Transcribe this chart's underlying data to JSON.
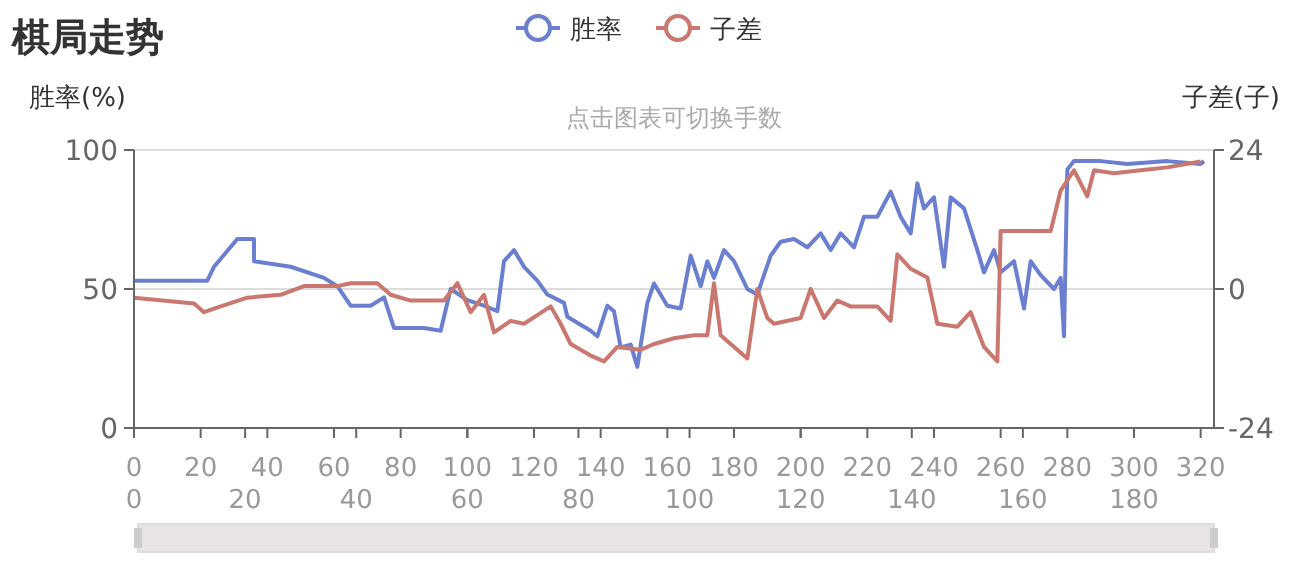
{
  "chart_data": {
    "type": "line",
    "title": "棋局走势",
    "subtitle": "点击图表可切换手数",
    "ylabel": "胜率(%)",
    "y2label": "子差(子)",
    "xlim": [
      0,
      324
    ],
    "xticks": [
      0,
      20,
      40,
      60,
      80,
      100,
      120,
      140,
      160,
      180,
      200,
      220,
      240,
      260,
      280,
      300,
      320
    ],
    "x2lim": [
      0,
      194.4
    ],
    "x2ticks": [
      0,
      20,
      40,
      60,
      80,
      100,
      120,
      140,
      160,
      180
    ],
    "ylim": [
      0,
      100
    ],
    "yticks": [
      0,
      50,
      100
    ],
    "y2lim": [
      -24,
      24
    ],
    "y2ticks": [
      -24,
      0,
      24
    ],
    "grid": "y",
    "legend": "top",
    "line_style": "solid",
    "series": [
      {
        "name": "胜率",
        "color": "#6b7fd0",
        "x": [
          0,
          18,
          22,
          24,
          31,
          36,
          36,
          47,
          57,
          61,
          65,
          71,
          75,
          78,
          87,
          92,
          95,
          100,
          105,
          109,
          111,
          114,
          117,
          121,
          124,
          129,
          130,
          137,
          139,
          142,
          144,
          146,
          149,
          151,
          154,
          156,
          160,
          164,
          167,
          170,
          172,
          174,
          177,
          180,
          184,
          187,
          191,
          194,
          198,
          202,
          206,
          209,
          212,
          216,
          219,
          223,
          227,
          230,
          233,
          235,
          237,
          240,
          243,
          245,
          249,
          253,
          255,
          258,
          260,
          264,
          267,
          269,
          272,
          276,
          278,
          279,
          280,
          282,
          290,
          298,
          310,
          320,
          321
        ],
        "values": [
          53,
          53,
          53,
          58,
          68,
          68,
          60,
          58,
          54,
          51,
          44,
          44,
          47,
          36,
          36,
          35,
          50,
          46,
          44,
          42,
          60,
          64,
          58,
          53,
          48,
          45,
          40,
          35,
          33,
          44,
          42,
          29,
          30,
          22,
          45,
          52,
          44,
          43,
          62,
          51,
          60,
          54,
          64,
          60,
          50,
          48,
          62,
          67,
          68,
          65,
          70,
          64,
          70,
          65,
          76,
          76,
          85,
          76,
          70,
          88,
          79,
          83,
          58,
          83,
          79,
          64,
          56,
          64,
          56,
          60,
          43,
          60,
          55,
          50,
          54,
          33,
          93,
          96,
          96,
          95,
          96,
          95,
          96
        ]
      },
      {
        "name": "子差",
        "color": "#c9776f",
        "axis": "y2",
        "x": [
          0,
          18,
          21,
          26,
          34,
          44,
          51,
          61,
          65,
          73,
          77,
          83,
          93,
          97,
          101,
          105,
          108,
          113,
          117,
          121,
          125,
          128,
          131,
          137,
          141,
          145,
          152,
          156,
          162,
          168,
          172,
          174,
          176,
          184,
          187,
          190,
          192,
          200,
          203,
          207,
          211,
          215,
          223,
          227,
          229,
          233,
          238,
          241,
          247,
          251,
          255,
          259,
          260,
          275,
          278,
          282,
          286,
          288,
          294,
          302,
          310,
          320
        ],
        "values": [
          -1.5,
          -2.5,
          -4,
          -3,
          -1.5,
          -1,
          0.5,
          0.5,
          1,
          1,
          -1,
          -2,
          -2,
          1,
          -4,
          -1,
          -7.5,
          -5.5,
          -6,
          -4.5,
          -3,
          -6,
          -9.5,
          -11.5,
          -12.5,
          -10,
          -10.5,
          -9.5,
          -8.5,
          -8,
          -8,
          1,
          -8,
          -12,
          0,
          -5,
          -6,
          -5,
          0,
          -5,
          -2,
          -3,
          -3,
          -5.5,
          6,
          3.5,
          2,
          -6,
          -6.5,
          -4,
          -10,
          -12.5,
          10,
          10,
          17,
          20.5,
          16,
          20.5,
          20,
          20.5,
          21,
          22
        ]
      }
    ]
  }
}
